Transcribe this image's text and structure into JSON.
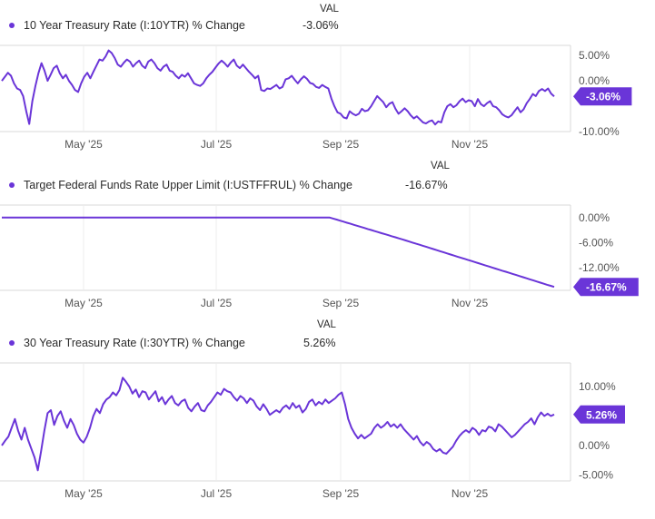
{
  "accent_color": "#6a35d8",
  "chart_data": [
    {
      "type": "line",
      "series": [
        {
          "name": "10 Year Treasury Rate (I:10YTR) % Change",
          "values": [
            0,
            0.8,
            1.6,
            1.0,
            -0.5,
            -1.5,
            -1.8,
            -3.0,
            -6.0,
            -8.5,
            -4.0,
            -1.0,
            1.5,
            3.5,
            2.0,
            0.0,
            1.2,
            2.5,
            3.0,
            1.5,
            0.5,
            1.2,
            0,
            -0.8,
            -1.8,
            -2.2,
            -0.5,
            0.8,
            1.6,
            0.5,
            1.8,
            3.0,
            4.2,
            4.0,
            4.8,
            6.0,
            5.5,
            4.5,
            3.2,
            2.8,
            3.6,
            4.2,
            3.8,
            2.8,
            3.5,
            4.0,
            3.0,
            2.5,
            3.8,
            4.2,
            3.5,
            2.5,
            2.0,
            2.8,
            3.2,
            2.0,
            1.8,
            1.0,
            0.5,
            1.2,
            0.8,
            1.5,
            0.5,
            -0.5,
            -0.8,
            -1.0,
            -0.5,
            0.5,
            1.2,
            1.8,
            2.6,
            3.4,
            4.0,
            3.5,
            2.8,
            3.6,
            4.2,
            3.0,
            2.5,
            3.2,
            2.5,
            1.8,
            1.2,
            0.5,
            1.0,
            -1.8,
            -2.0,
            -1.5,
            -1.6,
            -1.2,
            -0.8,
            -1.5,
            -1.2,
            0.3,
            0.5,
            1.0,
            0.2,
            -0.5,
            0.3,
            0.9,
            0.4,
            -0.4,
            -0.6,
            -1.2,
            -1.4,
            -0.8,
            -1.2,
            -1.5,
            -3.5,
            -5.0,
            -6.2,
            -6.5,
            -7.2,
            -7.4,
            -6.0,
            -6.5,
            -6.8,
            -6.5,
            -5.5,
            -6.0,
            -5.8,
            -5.0,
            -4.0,
            -3.0,
            -3.6,
            -4.2,
            -5.2,
            -4.5,
            -4.2,
            -5.5,
            -6.5,
            -6.0,
            -5.4,
            -6.0,
            -6.8,
            -7.4,
            -7.0,
            -7.6,
            -8.2,
            -8.4,
            -8.0,
            -7.8,
            -8.6,
            -8.0,
            -8.2,
            -6.2,
            -5.0,
            -4.6,
            -5.2,
            -4.8,
            -4.0,
            -3.5,
            -4.2,
            -3.8,
            -4.0,
            -5.0,
            -3.6,
            -4.6,
            -5.0,
            -4.4,
            -4.0,
            -5.0,
            -5.2,
            -5.8,
            -6.6,
            -7.0,
            -7.2,
            -6.8,
            -6.0,
            -5.2,
            -6.2,
            -5.6,
            -4.4,
            -3.6,
            -2.6,
            -3.0,
            -2.0,
            -1.6,
            -2.0,
            -1.5,
            -2.5,
            -3.06
          ]
        }
      ],
      "ylim": [
        -10,
        7
      ],
      "yticks": [
        5,
        0,
        -10
      ],
      "yticklabels": [
        "5.00%",
        "0.00%",
        "-10.00%"
      ],
      "xticklabels": [
        "May '25",
        "Jul '25",
        "Sep '25",
        "Nov '25"
      ],
      "last_value_label": "-3.06%",
      "val_header": "VAL",
      "val_text": "-3.06%"
    },
    {
      "type": "line",
      "series": [
        {
          "name": "Target Federal Funds Rate Upper Limit (I:USTFFRUL) % Change",
          "values": [
            0,
            0,
            0,
            0,
            0,
            0,
            0,
            0,
            0,
            0,
            0,
            0,
            0,
            0,
            0,
            0,
            0,
            0,
            0,
            0,
            0,
            0,
            0,
            0,
            0,
            0,
            0,
            0,
            0,
            0,
            0,
            0,
            0,
            0,
            0,
            0,
            0,
            0,
            0,
            0,
            0,
            0,
            0,
            0,
            0,
            0,
            0,
            0,
            0,
            0,
            0,
            0,
            0,
            0,
            0,
            0,
            0,
            0,
            0,
            0,
            0,
            0,
            0,
            0,
            0,
            0,
            0,
            0,
            0,
            0,
            0,
            0,
            0,
            0,
            0,
            0,
            0,
            0,
            0,
            0,
            0,
            0,
            0,
            0,
            0,
            0,
            0,
            0,
            0,
            0,
            0,
            0,
            0,
            0,
            0,
            0,
            -0.25,
            -0.5,
            -0.75,
            -1.0,
            -1.25,
            -1.5,
            -1.75,
            -2.0,
            -2.25,
            -2.5,
            -2.75,
            -3.0,
            -3.25,
            -3.5,
            -3.75,
            -4.0,
            -4.25,
            -4.5,
            -4.75,
            -5.0,
            -5.25,
            -5.5,
            -5.76,
            -6.02,
            -6.28,
            -6.54,
            -6.8,
            -7.06,
            -7.32,
            -7.58,
            -7.84,
            -8.1,
            -8.36,
            -8.62,
            -8.88,
            -9.14,
            -9.4,
            -9.66,
            -9.92,
            -10.18,
            -10.44,
            -10.7,
            -10.96,
            -11.22,
            -11.48,
            -11.74,
            -12.0,
            -12.26,
            -12.52,
            -12.78,
            -13.04,
            -13.3,
            -13.56,
            -13.82,
            -14.08,
            -14.34,
            -14.6,
            -14.86,
            -15.12,
            -15.38,
            -15.64,
            -15.9,
            -16.16,
            -16.42,
            -16.67
          ]
        }
      ],
      "ylim": [
        -17.5,
        3
      ],
      "yticks": [
        0,
        -6,
        -12
      ],
      "yticklabels": [
        "0.00%",
        "-6.00%",
        "-12.00%"
      ],
      "xticklabels": [
        "May '25",
        "Jul '25",
        "Sep '25",
        "Nov '25"
      ],
      "last_value_label": "-16.67%",
      "val_header": "VAL",
      "val_text": "-16.67%"
    },
    {
      "type": "line",
      "series": [
        {
          "name": "30 Year Treasury Rate (I:30YTR) % Change",
          "values": [
            0,
            0.8,
            1.5,
            3.0,
            4.5,
            2.5,
            1.0,
            3.0,
            1.0,
            -0.5,
            -2.0,
            -4.2,
            -1.0,
            2.5,
            5.5,
            6.0,
            3.5,
            5.0,
            5.8,
            4.2,
            3.0,
            4.5,
            3.5,
            2.0,
            1.0,
            0.5,
            1.5,
            3.0,
            5.0,
            6.2,
            5.5,
            7.0,
            7.8,
            8.2,
            9.0,
            8.5,
            9.4,
            11.5,
            10.8,
            10.0,
            8.8,
            9.5,
            8.2,
            9.2,
            9.0,
            7.8,
            8.5,
            9.2,
            7.5,
            8.2,
            7.0,
            7.8,
            8.4,
            7.2,
            6.8,
            7.5,
            7.8,
            6.4,
            5.8,
            6.6,
            7.2,
            6.0,
            5.8,
            6.8,
            7.4,
            8.2,
            9.0,
            8.6,
            9.6,
            9.2,
            9.0,
            8.2,
            7.6,
            8.4,
            8.0,
            7.2,
            8.0,
            7.6,
            6.6,
            6.0,
            7.0,
            6.2,
            5.2,
            5.6,
            6.0,
            5.6,
            6.4,
            6.8,
            6.2,
            7.2,
            6.4,
            6.8,
            5.6,
            6.2,
            7.4,
            7.8,
            6.8,
            7.4,
            7.0,
            7.8,
            7.2,
            7.6,
            8.0,
            8.6,
            9.0,
            7.0,
            4.5,
            3.0,
            2.0,
            1.2,
            1.8,
            1.2,
            1.6,
            2.0,
            3.0,
            3.6,
            3.0,
            3.4,
            4.0,
            3.2,
            3.6,
            3.0,
            3.6,
            2.8,
            2.2,
            1.6,
            1.0,
            1.6,
            0.6,
            0.0,
            0.6,
            0.2,
            -0.6,
            -1.0,
            -0.6,
            -1.2,
            -1.4,
            -0.8,
            -0.2,
            0.8,
            1.6,
            2.2,
            2.6,
            2.2,
            3.0,
            2.6,
            1.8,
            2.6,
            2.4,
            3.2,
            3.0,
            2.4,
            3.6,
            3.2,
            2.6,
            2.0,
            1.4,
            1.8,
            2.4,
            3.0,
            3.6,
            4.0,
            4.6,
            3.6,
            4.8,
            5.6,
            5.0,
            5.4,
            5.0,
            5.26
          ]
        }
      ],
      "ylim": [
        -6,
        14
      ],
      "yticks": [
        10,
        5,
        0,
        -5
      ],
      "yticklabels": [
        "10.00%",
        "5.00%",
        "0.00%",
        "-5.00%"
      ],
      "xticklabels": [
        "May '25",
        "Jul '25",
        "Sep '25",
        "Nov '25"
      ],
      "last_value_label": "5.26%",
      "val_header": "VAL",
      "val_text": "5.26%"
    }
  ]
}
